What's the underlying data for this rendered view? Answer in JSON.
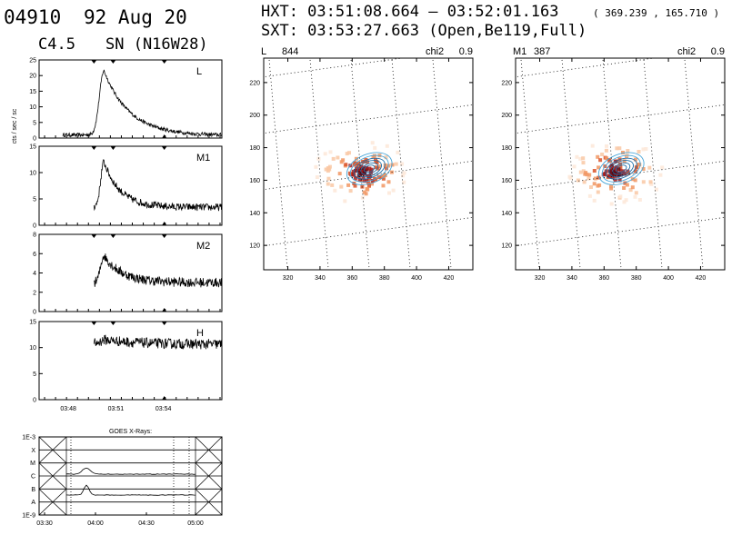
{
  "header": {
    "event_id": "04910",
    "date": "92 Aug 20",
    "goes_class": "C4.5",
    "location": "SN (N16W28)",
    "hxt_label": "HXT: 03:51:08.664 – 03:52:01.163",
    "hxt_position": "( 369.239 , 165.710 )",
    "sxt_label": "SXT: 03:53:27.663 (Open,Be119,Full)"
  },
  "chart_data": [
    {
      "type": "line",
      "channel": "L",
      "ylabel": "cts / sec / sc",
      "ylim": [
        0,
        25
      ],
      "yticks": [
        "0",
        "5",
        "10",
        "15",
        "20",
        "25"
      ],
      "xlim": [
        0,
        10
      ],
      "profile": {
        "start": 1.3,
        "peak_t": 3.55,
        "peak": 21.5,
        "base": 1.0,
        "rise": 0.35,
        "decay": 1.4,
        "noise": 0.6,
        "end_level": 0.8
      }
    },
    {
      "type": "line",
      "channel": "M1",
      "ylim": [
        0,
        15
      ],
      "yticks": [
        "0",
        "5",
        "10",
        "15"
      ],
      "xlim": [
        0,
        10
      ],
      "profile": {
        "start": 3.0,
        "peak_t": 3.55,
        "peak": 12.0,
        "base": 3.5,
        "rise": 0.25,
        "decay": 0.9,
        "noise": 0.7,
        "end_level": 3.4
      }
    },
    {
      "type": "line",
      "channel": "M2",
      "ylim": [
        0,
        8
      ],
      "yticks": [
        "0",
        "2",
        "4",
        "6",
        "8"
      ],
      "xlim": [
        0,
        10
      ],
      "profile": {
        "start": 3.0,
        "peak_t": 3.55,
        "peak": 5.8,
        "base": 3.0,
        "rise": 0.25,
        "decay": 1.0,
        "noise": 0.5,
        "end_level": 3.0
      }
    },
    {
      "type": "line",
      "channel": "H",
      "ylim": [
        0,
        15
      ],
      "yticks": [
        "0",
        "5",
        "10",
        "15"
      ],
      "xlim": [
        0,
        10
      ],
      "xticks": [
        {
          "t": 1.6,
          "label": "03:48"
        },
        {
          "t": 4.2,
          "label": "03:51"
        },
        {
          "t": 6.8,
          "label": "03:54"
        }
      ],
      "profile": {
        "start": 3.0,
        "peak_t": 3.6,
        "peak": 11.5,
        "base": 10.8,
        "rise": 0.3,
        "decay": 2.0,
        "noise": 1.0,
        "end_level": 10.6
      }
    },
    {
      "type": "line",
      "title": "GOES X-Rays:",
      "ylabels": [
        "1E-3",
        "X",
        "M",
        "C",
        "B",
        "A",
        "1E-9"
      ],
      "xticks": [
        "03:30",
        "04:00",
        "04:30",
        "05:00"
      ]
    },
    {
      "type": "heatmap",
      "panel": "L",
      "counts": "844",
      "chi2_label": "chi2",
      "chi2": "0.9",
      "xticks": [
        "320",
        "340",
        "360",
        "380",
        "400",
        "420"
      ],
      "yticks": [
        "120",
        "140",
        "160",
        "180",
        "200",
        "220"
      ],
      "xlim": [
        305,
        435
      ],
      "ylim": [
        105,
        235
      ],
      "source_center": [
        369,
        166
      ]
    },
    {
      "type": "heatmap",
      "panel": "M1",
      "counts": "387",
      "chi2_label": "chi2",
      "chi2": "0.9",
      "xticks": [
        "320",
        "340",
        "360",
        "380",
        "400",
        "420"
      ],
      "yticks": [
        "120",
        "140",
        "160",
        "180",
        "200",
        "220"
      ],
      "xlim": [
        305,
        435
      ],
      "ylim": [
        105,
        235
      ],
      "source_center": [
        369,
        166
      ]
    }
  ]
}
